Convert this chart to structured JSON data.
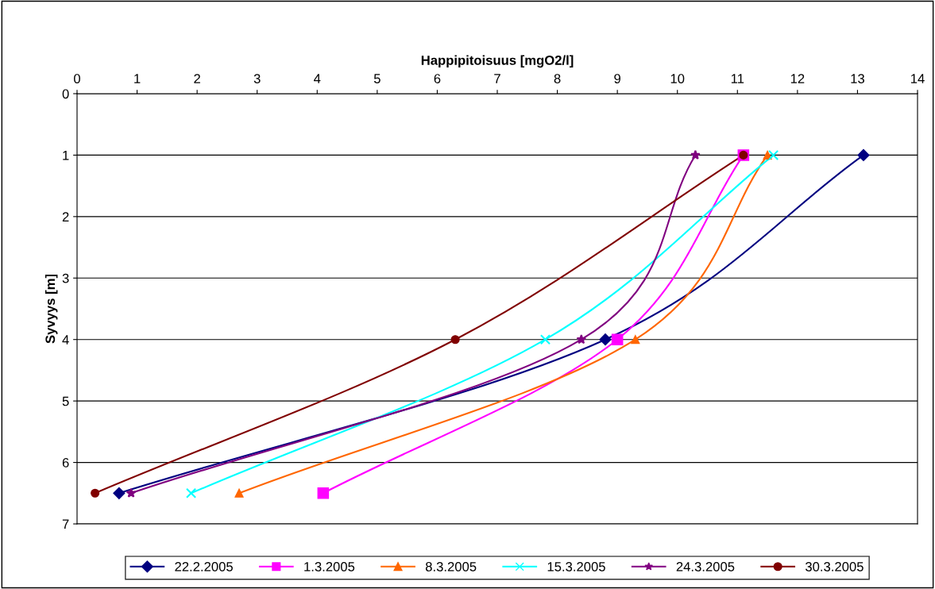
{
  "chart_data": {
    "type": "line",
    "xlabel": "Happipitoisuus [mgO2/l]",
    "ylabel": "Syvyys [m]",
    "xlim": [
      0,
      14
    ],
    "xticks": [
      0,
      1,
      2,
      3,
      4,
      5,
      6,
      7,
      8,
      9,
      10,
      11,
      12,
      13,
      14
    ],
    "ylim": [
      7,
      0
    ],
    "yticks": [
      0,
      1,
      2,
      3,
      4,
      5,
      6,
      7
    ],
    "grid": "y",
    "legend": "bottom",
    "line_style": "solid",
    "series": [
      {
        "name": "22.2.2005",
        "color": "#000080",
        "marker": "diamond",
        "x": [
          13.1,
          8.8,
          0.7
        ],
        "values": [
          1,
          4,
          6.5
        ]
      },
      {
        "name": "1.3.2005",
        "color": "#ff00ff",
        "marker": "square",
        "x": [
          11.1,
          9.0,
          4.1
        ],
        "values": [
          1,
          4,
          6.5
        ]
      },
      {
        "name": "8.3.2005",
        "color": "#ff6600",
        "marker": "triangle",
        "x": [
          11.5,
          9.3,
          2.7
        ],
        "values": [
          1,
          4,
          6.5
        ]
      },
      {
        "name": "15.3.2005",
        "color": "#00ffff",
        "marker": "cross",
        "x": [
          11.6,
          7.8,
          1.9
        ],
        "values": [
          1,
          4,
          6.5
        ]
      },
      {
        "name": "24.3.2005",
        "color": "#800080",
        "marker": "star",
        "x": [
          10.3,
          8.4,
          0.9
        ],
        "values": [
          1,
          4,
          6.5
        ]
      },
      {
        "name": "30.3.2005",
        "color": "#800000",
        "marker": "circle",
        "x": [
          11.1,
          6.3,
          0.3
        ],
        "values": [
          1,
          4,
          6.5
        ]
      }
    ]
  }
}
